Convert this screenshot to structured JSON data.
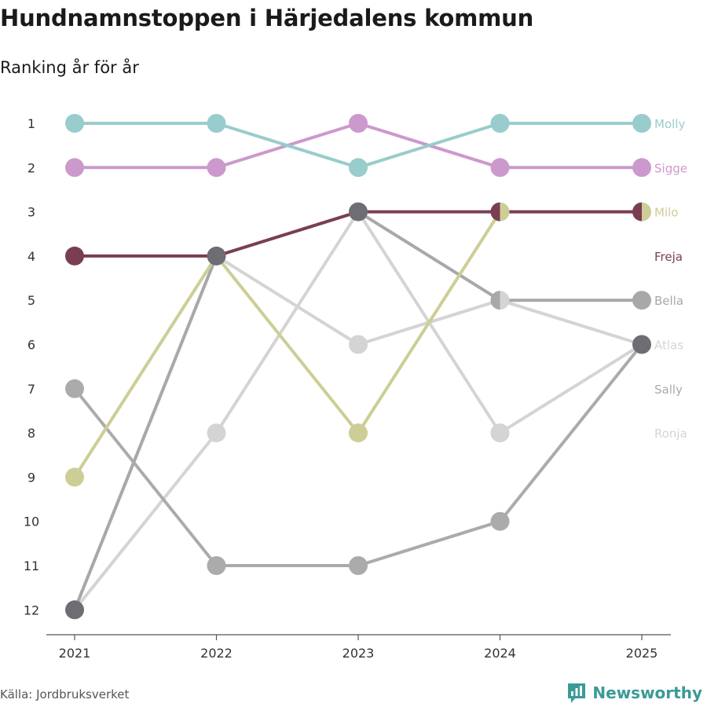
{
  "title": "Hundnamnstoppen i Härjedalens kommun",
  "subtitle": "Ranking år för år",
  "source": "Källa: Jordbruksverket",
  "brand": {
    "name": "Newsworthy",
    "icon": "newsworthy-logo-icon",
    "color": "#3a9a96"
  },
  "chart_data": {
    "type": "line",
    "subtype": "bump",
    "title": "Hundnamnstoppen i Härjedalens kommun",
    "subtitle": "Ranking år för år",
    "x": [
      "2021",
      "2022",
      "2023",
      "2024",
      "2025"
    ],
    "xlabel": "",
    "ylabel": "",
    "yticks": [
      "1",
      "2",
      "3",
      "4",
      "5",
      "6",
      "7",
      "8",
      "9",
      "10",
      "11",
      "12"
    ],
    "ylim": [
      1,
      12
    ],
    "y_inverted": true,
    "series": [
      {
        "name": "Atlas",
        "color": "#d4d4d4",
        "values": [
          12,
          8,
          3,
          8,
          6
        ]
      },
      {
        "name": "Sally",
        "color": "#ababab",
        "values": [
          7,
          11,
          11,
          10,
          6
        ]
      },
      {
        "name": "Ronja",
        "color": "#d4d4d4",
        "values": [
          12,
          4,
          6,
          5,
          6
        ]
      },
      {
        "name": "Bella",
        "color": "#a8a8aa",
        "values": [
          12,
          4,
          3,
          5,
          5
        ]
      },
      {
        "name": "Milo",
        "color": "#cdcd96",
        "values": [
          9,
          4,
          8,
          3,
          3
        ]
      },
      {
        "name": "Freja",
        "color": "#7a3e52",
        "values": [
          4,
          4,
          3,
          3,
          3
        ]
      },
      {
        "name": "Sigge",
        "color": "#cc99cc",
        "values": [
          2,
          2,
          1,
          2,
          2
        ]
      },
      {
        "name": "Molly",
        "color": "#99cccc",
        "values": [
          1,
          1,
          2,
          1,
          1
        ]
      }
    ],
    "shared_point_color": "#6d6d73",
    "label_position": "right"
  }
}
